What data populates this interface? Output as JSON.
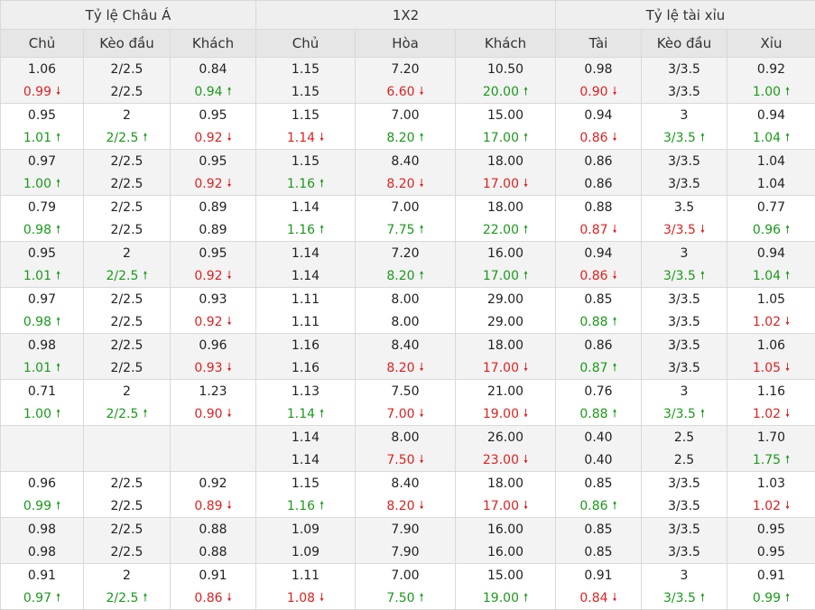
{
  "headers": {
    "groups": [
      "Tỷ lệ Châu Á",
      "1X2",
      "Tỷ lệ tài xỉu"
    ],
    "columns": [
      "Chủ",
      "Kèo đầu",
      "Khách",
      "Chủ",
      "Hòa",
      "Khách",
      "Tài",
      "Kèo đầu",
      "Xỉu"
    ]
  },
  "trend_colors": {
    "up": "#1a9a1a",
    "down": "#e02020"
  },
  "arrows": {
    "up": "🠕",
    "down": "🠗"
  },
  "rows": [
    [
      [
        "1.06",
        "",
        "0.99",
        "down"
      ],
      [
        "2/2.5",
        "",
        "2/2.5",
        ""
      ],
      [
        "0.84",
        "",
        "0.94",
        "up"
      ],
      [
        "1.15",
        "",
        "1.15",
        ""
      ],
      [
        "7.20",
        "",
        "6.60",
        "down"
      ],
      [
        "10.50",
        "",
        "20.00",
        "up"
      ],
      [
        "0.98",
        "",
        "0.90",
        "down"
      ],
      [
        "3/3.5",
        "",
        "3/3.5",
        ""
      ],
      [
        "0.92",
        "",
        "1.00",
        "up"
      ]
    ],
    [
      [
        "0.95",
        "",
        "1.01",
        "up"
      ],
      [
        "2",
        "",
        "2/2.5",
        "up"
      ],
      [
        "0.95",
        "",
        "0.92",
        "down"
      ],
      [
        "1.15",
        "",
        "1.14",
        "down"
      ],
      [
        "7.00",
        "",
        "8.20",
        "up"
      ],
      [
        "15.00",
        "",
        "17.00",
        "up"
      ],
      [
        "0.94",
        "",
        "0.86",
        "down"
      ],
      [
        "3",
        "",
        "3/3.5",
        "up"
      ],
      [
        "0.94",
        "",
        "1.04",
        "up"
      ]
    ],
    [
      [
        "0.97",
        "",
        "1.00",
        "up"
      ],
      [
        "2/2.5",
        "",
        "2/2.5",
        ""
      ],
      [
        "0.95",
        "",
        "0.92",
        "down"
      ],
      [
        "1.15",
        "",
        "1.16",
        "up"
      ],
      [
        "8.40",
        "",
        "8.20",
        "down"
      ],
      [
        "18.00",
        "",
        "17.00",
        "down"
      ],
      [
        "0.86",
        "",
        "0.86",
        ""
      ],
      [
        "3/3.5",
        "",
        "3/3.5",
        ""
      ],
      [
        "1.04",
        "",
        "1.04",
        ""
      ]
    ],
    [
      [
        "0.79",
        "",
        "0.98",
        "up"
      ],
      [
        "2/2.5",
        "",
        "2/2.5",
        ""
      ],
      [
        "0.89",
        "",
        "0.89",
        ""
      ],
      [
        "1.14",
        "",
        "1.16",
        "up"
      ],
      [
        "7.00",
        "",
        "7.75",
        "up"
      ],
      [
        "18.00",
        "",
        "22.00",
        "up"
      ],
      [
        "0.88",
        "",
        "0.87",
        "down"
      ],
      [
        "3.5",
        "",
        "3/3.5",
        "down"
      ],
      [
        "0.77",
        "",
        "0.96",
        "up"
      ]
    ],
    [
      [
        "0.95",
        "",
        "1.01",
        "up"
      ],
      [
        "2",
        "",
        "2/2.5",
        "up"
      ],
      [
        "0.95",
        "",
        "0.92",
        "down"
      ],
      [
        "1.14",
        "",
        "1.14",
        ""
      ],
      [
        "7.20",
        "",
        "8.20",
        "up"
      ],
      [
        "16.00",
        "",
        "17.00",
        "up"
      ],
      [
        "0.94",
        "",
        "0.86",
        "down"
      ],
      [
        "3",
        "",
        "3/3.5",
        "up"
      ],
      [
        "0.94",
        "",
        "1.04",
        "up"
      ]
    ],
    [
      [
        "0.97",
        "",
        "0.98",
        "up"
      ],
      [
        "2/2.5",
        "",
        "2/2.5",
        ""
      ],
      [
        "0.93",
        "",
        "0.92",
        "down"
      ],
      [
        "1.11",
        "",
        "1.11",
        ""
      ],
      [
        "8.00",
        "",
        "8.00",
        ""
      ],
      [
        "29.00",
        "",
        "29.00",
        ""
      ],
      [
        "0.85",
        "",
        "0.88",
        "up"
      ],
      [
        "3/3.5",
        "",
        "3/3.5",
        ""
      ],
      [
        "1.05",
        "",
        "1.02",
        "down"
      ]
    ],
    [
      [
        "0.98",
        "",
        "1.01",
        "up"
      ],
      [
        "2/2.5",
        "",
        "2/2.5",
        ""
      ],
      [
        "0.96",
        "",
        "0.93",
        "down"
      ],
      [
        "1.16",
        "",
        "1.16",
        ""
      ],
      [
        "8.40",
        "",
        "8.20",
        "down"
      ],
      [
        "18.00",
        "",
        "17.00",
        "down"
      ],
      [
        "0.86",
        "",
        "0.87",
        "up"
      ],
      [
        "3/3.5",
        "",
        "3/3.5",
        ""
      ],
      [
        "1.06",
        "",
        "1.05",
        "down"
      ]
    ],
    [
      [
        "0.71",
        "",
        "1.00",
        "up"
      ],
      [
        "2",
        "",
        "2/2.5",
        "up"
      ],
      [
        "1.23",
        "",
        "0.90",
        "down"
      ],
      [
        "1.13",
        "",
        "1.14",
        "up"
      ],
      [
        "7.50",
        "",
        "7.00",
        "down"
      ],
      [
        "21.00",
        "",
        "19.00",
        "down"
      ],
      [
        "0.76",
        "",
        "0.88",
        "up"
      ],
      [
        "3",
        "",
        "3/3.5",
        "up"
      ],
      [
        "1.16",
        "",
        "1.02",
        "down"
      ]
    ],
    [
      [
        "",
        "",
        "",
        ""
      ],
      [
        "",
        "",
        "",
        ""
      ],
      [
        "",
        "",
        "",
        ""
      ],
      [
        "1.14",
        "",
        "1.14",
        ""
      ],
      [
        "8.00",
        "",
        "7.50",
        "down"
      ],
      [
        "26.00",
        "",
        "23.00",
        "down"
      ],
      [
        "0.40",
        "",
        "0.40",
        ""
      ],
      [
        "2.5",
        "",
        "2.5",
        ""
      ],
      [
        "1.70",
        "",
        "1.75",
        "up"
      ]
    ],
    [
      [
        "0.96",
        "",
        "0.99",
        "up"
      ],
      [
        "2/2.5",
        "",
        "2/2.5",
        ""
      ],
      [
        "0.92",
        "",
        "0.89",
        "down"
      ],
      [
        "1.15",
        "",
        "1.16",
        "up"
      ],
      [
        "8.40",
        "",
        "8.20",
        "down"
      ],
      [
        "18.00",
        "",
        "17.00",
        "down"
      ],
      [
        "0.85",
        "",
        "0.86",
        "up"
      ],
      [
        "3/3.5",
        "",
        "3/3.5",
        ""
      ],
      [
        "1.03",
        "",
        "1.02",
        "down"
      ]
    ],
    [
      [
        "0.98",
        "",
        "0.98",
        ""
      ],
      [
        "2/2.5",
        "",
        "2/2.5",
        ""
      ],
      [
        "0.88",
        "",
        "0.88",
        ""
      ],
      [
        "1.09",
        "",
        "1.09",
        ""
      ],
      [
        "7.90",
        "",
        "7.90",
        ""
      ],
      [
        "16.00",
        "",
        "16.00",
        ""
      ],
      [
        "0.85",
        "",
        "0.85",
        ""
      ],
      [
        "3/3.5",
        "",
        "3/3.5",
        ""
      ],
      [
        "0.95",
        "",
        "0.95",
        ""
      ]
    ],
    [
      [
        "0.91",
        "",
        "0.97",
        "up"
      ],
      [
        "2",
        "",
        "2/2.5",
        "up"
      ],
      [
        "0.91",
        "",
        "0.86",
        "down"
      ],
      [
        "1.11",
        "",
        "1.08",
        "down"
      ],
      [
        "7.00",
        "",
        "7.50",
        "up"
      ],
      [
        "15.00",
        "",
        "19.00",
        "up"
      ],
      [
        "0.91",
        "",
        "0.84",
        "down"
      ],
      [
        "3",
        "",
        "3/3.5",
        "up"
      ],
      [
        "0.91",
        "",
        "0.99",
        "up"
      ]
    ]
  ]
}
